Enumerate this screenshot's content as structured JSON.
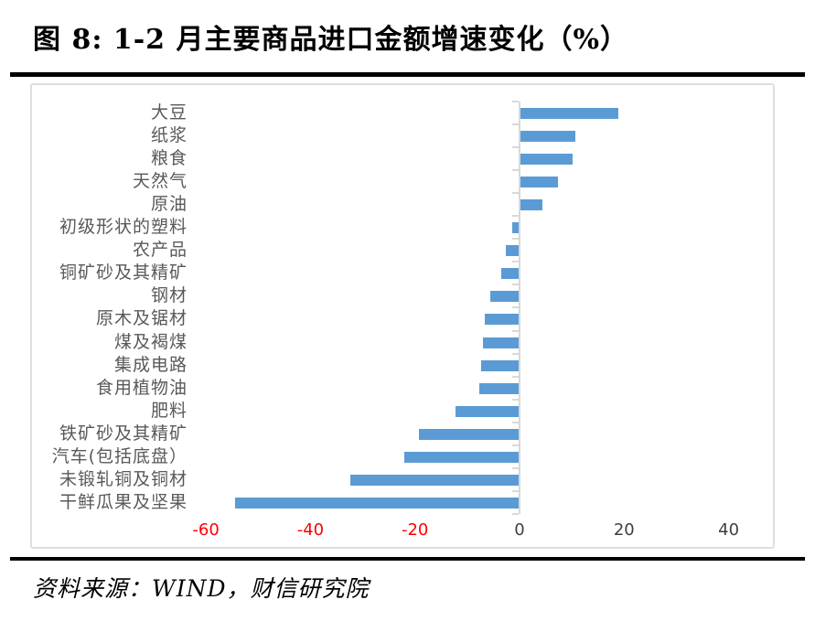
{
  "figure": {
    "title": "图 8:  1-2 月主要商品进口金额增速变化（%）",
    "source": "资料来源：WIND，财信研究院"
  },
  "chart_data": {
    "type": "bar",
    "orientation": "horizontal",
    "title": "1-2 月主要商品进口金额增速变化（%）",
    "categories": [
      "大豆",
      "纸浆",
      "粮食",
      "天然气",
      "原油",
      "初级形状的塑料",
      "农产品",
      "铜矿砂及其精矿",
      "钢材",
      "原木及锯材",
      "煤及褐煤",
      "集成电路",
      "食用植物油",
      "肥料",
      "铁矿砂及其精矿",
      "汽车(包括底盘）",
      "未锻轧铜及铜材",
      "干鲜瓜果及坚果"
    ],
    "values": [
      18.7,
      10.5,
      10.0,
      7.2,
      4.2,
      -1.2,
      -2.4,
      -3.4,
      -5.5,
      -6.5,
      -6.9,
      -7.2,
      -7.5,
      -12.1,
      -19.0,
      -21.9,
      -32.2,
      -54.2
    ],
    "unit": "%",
    "xlim": [
      -60,
      40
    ],
    "x_ticks": [
      {
        "label": "-60",
        "value": -60,
        "color": "#ff0000"
      },
      {
        "label": "-40",
        "value": -40,
        "color": "#ff0000"
      },
      {
        "label": "-20",
        "value": -20,
        "color": "#ff0000"
      },
      {
        "label": "0",
        "value": 0,
        "color": "#404040"
      },
      {
        "label": "20",
        "value": 20,
        "color": "#404040"
      },
      {
        "label": "40",
        "value": 40,
        "color": "#404040"
      }
    ],
    "bar_color": "#5b9bd5",
    "axis_color": "#d9d9d9",
    "category_label_color": "#595959",
    "grid": false,
    "legend": false
  }
}
